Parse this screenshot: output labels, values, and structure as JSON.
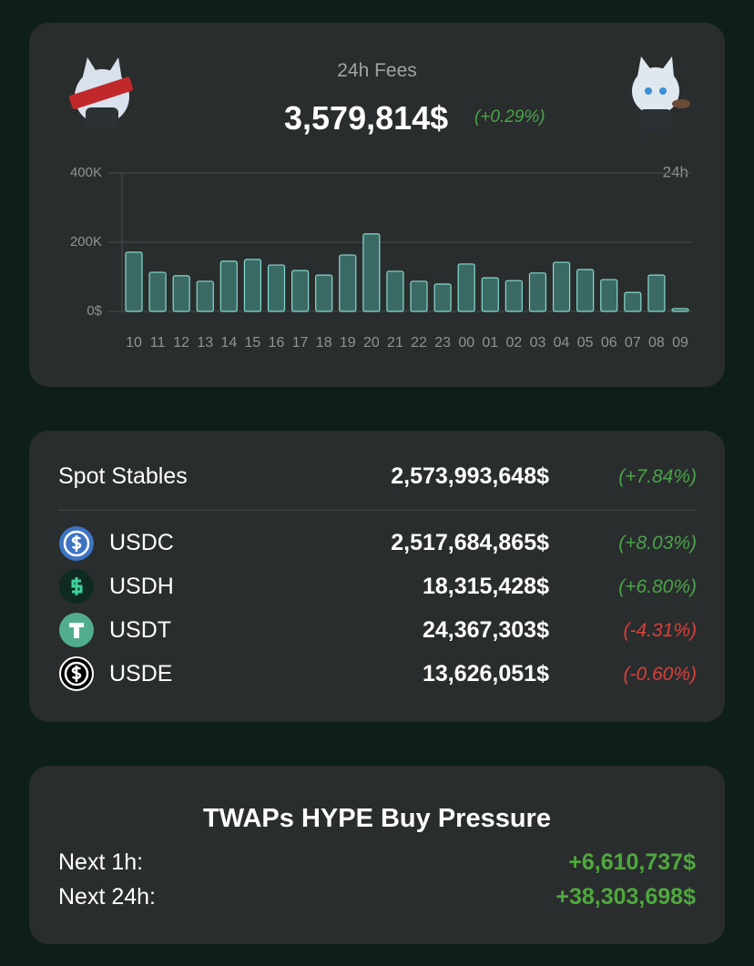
{
  "fees_card": {
    "title": "24h Fees",
    "value": "3,579,814$",
    "change": "(+0.29%)"
  },
  "chart_data": {
    "type": "bar",
    "annotation": "24h",
    "categories": [
      "10",
      "11",
      "12",
      "13",
      "14",
      "15",
      "16",
      "17",
      "18",
      "19",
      "20",
      "21",
      "22",
      "23",
      "00",
      "01",
      "02",
      "03",
      "04",
      "05",
      "06",
      "07",
      "08",
      "09"
    ],
    "values": [
      171000,
      113000,
      103000,
      87000,
      145000,
      150000,
      134000,
      118000,
      105000,
      163000,
      224000,
      116000,
      87000,
      79000,
      137000,
      97000,
      89000,
      111000,
      142000,
      121000,
      92000,
      55000,
      105000,
      8000
    ],
    "color": "#3b6a64",
    "edge_color": "#86d9cf",
    "ylim": [
      0,
      400000
    ],
    "yticks": [
      {
        "value": 0,
        "label": "0$"
      },
      {
        "value": 200000,
        "label": "200K"
      },
      {
        "value": 400000,
        "label": "400K"
      }
    ],
    "grid": true
  },
  "stables": {
    "total": {
      "name": "Spot Stables",
      "value": "2,573,993,648$",
      "change": "(+7.84%)"
    },
    "rows": [
      {
        "name": "USDC",
        "value": "2,517,684,865$",
        "change": "(+8.03%)"
      },
      {
        "name": "USDH",
        "value": "18,315,428$",
        "change": "(+6.80%)"
      },
      {
        "name": "USDT",
        "value": "24,367,303$",
        "change": "(-4.31%)"
      },
      {
        "name": "USDE",
        "value": "13,626,051$",
        "change": "(-0.60%)"
      }
    ]
  },
  "twaps": {
    "title": "TWAPs HYPE Buy Pressure",
    "rows": [
      {
        "label": "Next 1h:",
        "value": "+6,610,737$"
      },
      {
        "label": "Next 24h:",
        "value": "+38,303,698$"
      }
    ]
  }
}
